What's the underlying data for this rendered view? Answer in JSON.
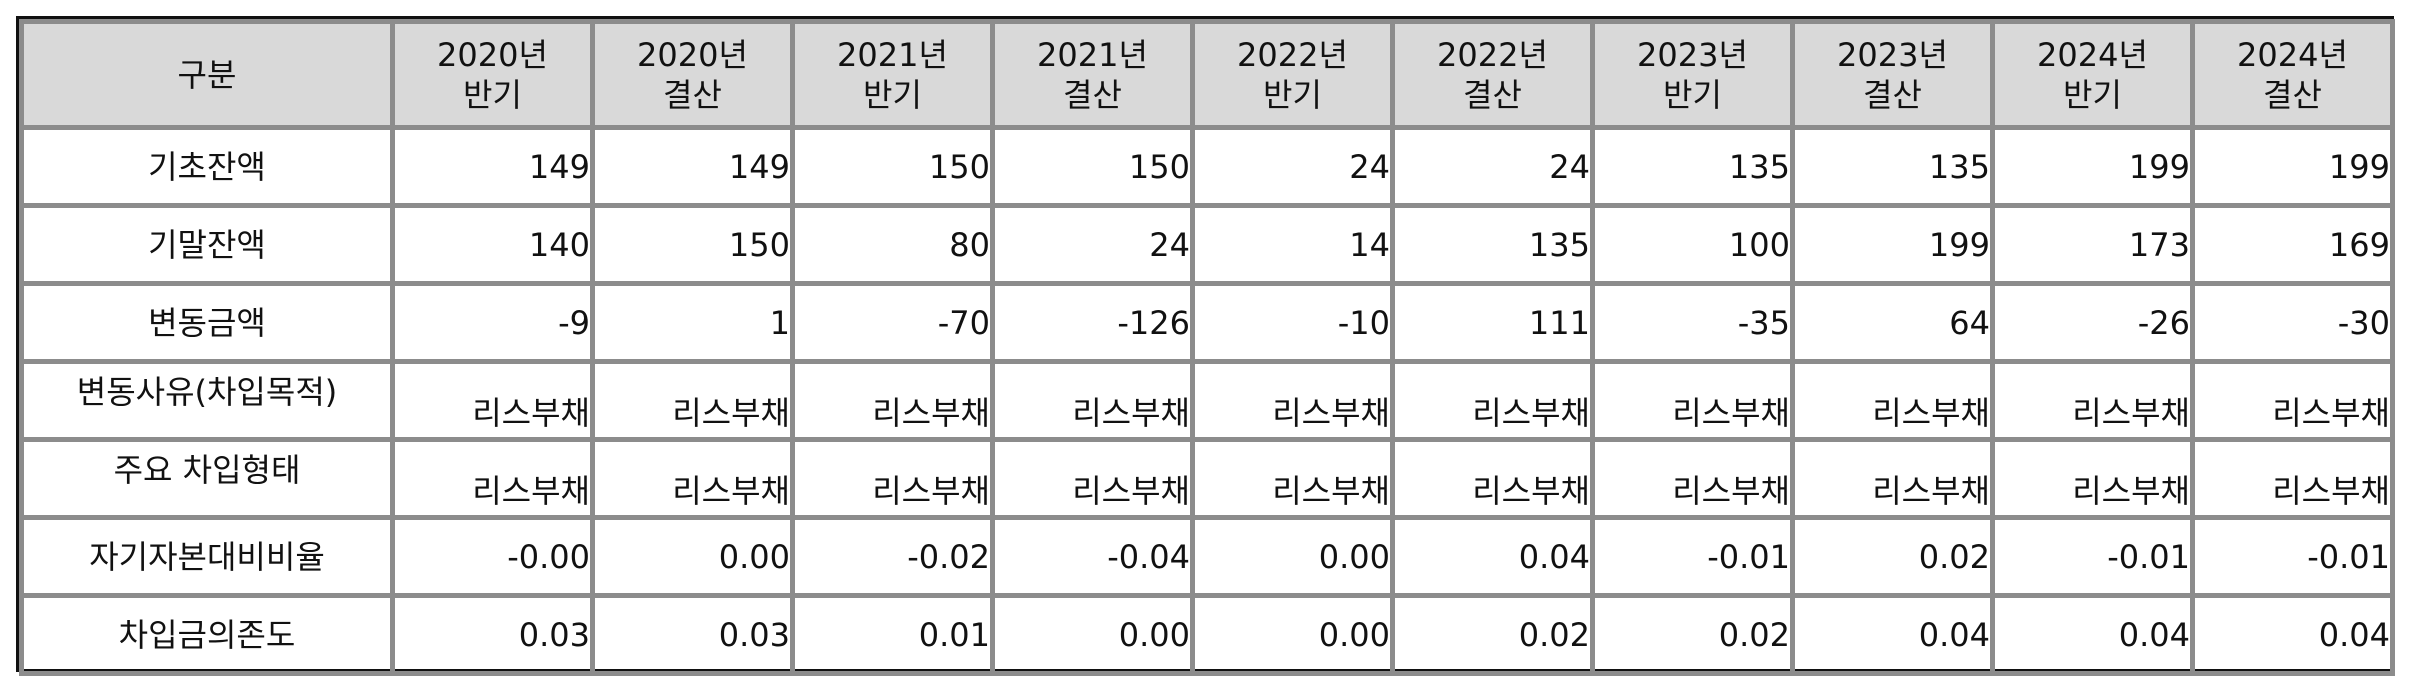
{
  "table": {
    "corner_label": "구분",
    "columns": [
      {
        "year": "2020년",
        "period": "반기"
      },
      {
        "year": "2020년",
        "period": "결산"
      },
      {
        "year": "2021년",
        "period": "반기"
      },
      {
        "year": "2021년",
        "period": "결산"
      },
      {
        "year": "2022년",
        "period": "반기"
      },
      {
        "year": "2022년",
        "period": "결산"
      },
      {
        "year": "2023년",
        "period": "반기"
      },
      {
        "year": "2023년",
        "period": "결산"
      },
      {
        "year": "2024년",
        "period": "반기"
      },
      {
        "year": "2024년",
        "period": "결산"
      }
    ],
    "rows": [
      {
        "label": "기초잔액",
        "values": [
          "149",
          "149",
          "150",
          "150",
          "24",
          "24",
          "135",
          "135",
          "199",
          "199"
        ]
      },
      {
        "label": "기말잔액",
        "values": [
          "140",
          "150",
          "80",
          "24",
          "14",
          "135",
          "100",
          "199",
          "173",
          "169"
        ]
      },
      {
        "label": "변동금액",
        "values": [
          "-9",
          "1",
          "-70",
          "-126",
          "-10",
          "111",
          "-35",
          "64",
          "-26",
          "-30"
        ]
      },
      {
        "label": "변동사유(차입목적)",
        "values": [
          "리스부채",
          "리스부채",
          "리스부채",
          "리스부채",
          "리스부채",
          "리스부채",
          "리스부채",
          "리스부채",
          "리스부채",
          "리스부채"
        ]
      },
      {
        "label": "주요 차입형태",
        "values": [
          "리스부채",
          "리스부채",
          "리스부채",
          "리스부채",
          "리스부채",
          "리스부채",
          "리스부채",
          "리스부채",
          "리스부채",
          "리스부채"
        ]
      },
      {
        "label": "자기자본대비비율",
        "values": [
          "-0.00",
          "0.00",
          "-0.02",
          "-0.04",
          "0.00",
          "0.04",
          "-0.01",
          "0.02",
          "-0.01",
          "-0.01"
        ]
      },
      {
        "label": "차입금의존도",
        "values": [
          "0.03",
          "0.03",
          "0.01",
          "0.00",
          "0.00",
          "0.02",
          "0.02",
          "0.04",
          "0.04",
          "0.04"
        ]
      }
    ]
  }
}
